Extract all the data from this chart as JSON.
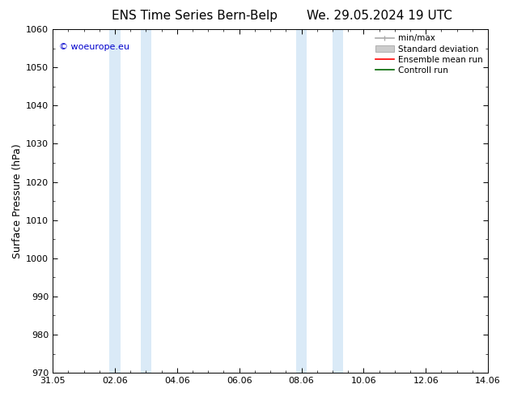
{
  "title_left": "ENS Time Series Bern-Belp",
  "title_right": "We. 29.05.2024 19 UTC",
  "ylabel": "Surface Pressure (hPa)",
  "ylim": [
    970,
    1060
  ],
  "yticks": [
    970,
    980,
    990,
    1000,
    1010,
    1020,
    1030,
    1040,
    1050,
    1060
  ],
  "xtick_labels": [
    "31.05",
    "02.06",
    "04.06",
    "06.06",
    "08.06",
    "10.06",
    "12.06",
    "14.06"
  ],
  "xtick_positions_days": [
    0,
    2,
    4,
    6,
    8,
    10,
    12,
    14
  ],
  "blue_bands": [
    {
      "x_start_day": 1.83,
      "x_end_day": 2.17
    },
    {
      "x_start_day": 2.83,
      "x_end_day": 3.17
    },
    {
      "x_start_day": 7.83,
      "x_end_day": 8.17
    },
    {
      "x_start_day": 9.0,
      "x_end_day": 9.33
    }
  ],
  "background_color": "#ffffff",
  "band_color": "#daeaf7",
  "copyright_text": "© woeurope.eu",
  "copyright_color": "#0000cc",
  "legend_items": [
    {
      "label": "min/max",
      "color": "#aaaaaa",
      "lw": 1.2,
      "type": "line_with_ticks"
    },
    {
      "label": "Standard deviation",
      "color": "#cccccc",
      "lw": 7,
      "type": "thick_line"
    },
    {
      "label": "Ensemble mean run",
      "color": "#ff0000",
      "lw": 1.2,
      "type": "line"
    },
    {
      "label": "Controll run",
      "color": "#006600",
      "lw": 1.2,
      "type": "line"
    }
  ],
  "outer_border_color": "#000000",
  "tick_color": "#000000",
  "title_fontsize": 11,
  "axis_fontsize": 8,
  "ylabel_fontsize": 9
}
